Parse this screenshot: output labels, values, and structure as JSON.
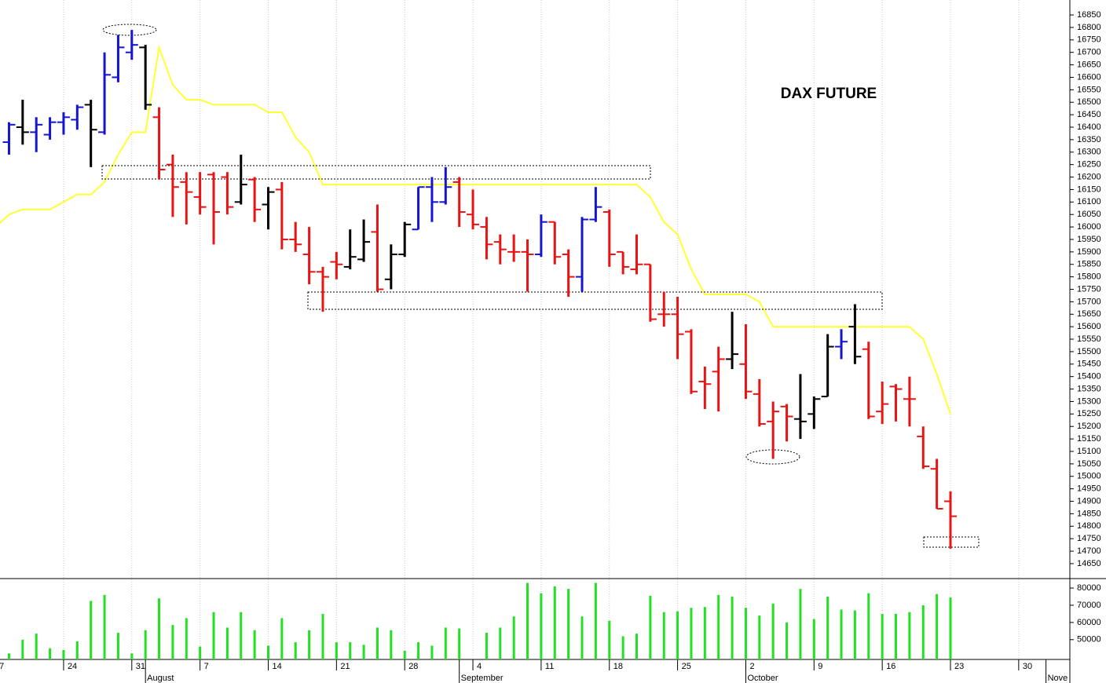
{
  "chart_data": [
    {
      "type": "ohlc",
      "title": "DAX FUTURE",
      "categories": [
        "7",
        null,
        null,
        null,
        null,
        "24",
        null,
        null,
        null,
        null,
        "31",
        null,
        null,
        null,
        null,
        "7",
        null,
        null,
        null,
        null,
        "14",
        null,
        null,
        null,
        null,
        "21",
        null,
        null,
        null,
        null,
        "28",
        null,
        null,
        null,
        null,
        "4",
        null,
        null,
        null,
        null,
        "11",
        null,
        null,
        null,
        null,
        "18",
        null,
        null,
        null,
        null,
        "25",
        null,
        null,
        null,
        null,
        "2",
        null,
        null,
        null,
        null,
        "9",
        null,
        null,
        null,
        null,
        "16",
        null,
        null,
        null,
        null,
        "23",
        null,
        null,
        null,
        null,
        "30",
        null,
        null
      ],
      "month_labels": [
        {
          "value": 11,
          "label": "August"
        },
        {
          "value": 34,
          "label": "September"
        },
        {
          "value": 55,
          "label": "October"
        },
        {
          "value": 77,
          "label": "Nove"
        }
      ],
      "open": [
        null,
        16340,
        16400,
        16380,
        16370,
        16420,
        16430,
        16490,
        16380,
        16600,
        16700,
        16720,
        16440,
        16250,
        16180,
        16120,
        16210,
        16200,
        16100,
        16190,
        16090,
        16150,
        15950,
        15890,
        15820,
        15860,
        15840,
        15870,
        15980,
        15790,
        15890,
        15990,
        16160,
        16100,
        16180,
        16050,
        16000,
        15940,
        15900,
        15900,
        15890,
        16020,
        15890,
        15800,
        16030,
        16060,
        15900,
        15830,
        15850,
        15650,
        15650,
        15580,
        15380,
        15420,
        15470,
        15450,
        15330,
        15220,
        15280,
        15230,
        15250,
        15320,
        15520,
        15600,
        15510,
        15260,
        15360,
        15310,
        15160,
        15030,
        14900,
        null,
        null,
        null,
        null,
        null,
        null,
        null
      ],
      "high": [
        null,
        16420,
        16510,
        16440,
        16440,
        16460,
        16490,
        16510,
        16700,
        16770,
        16790,
        16730,
        16480,
        16290,
        16220,
        16220,
        16220,
        16220,
        16290,
        16200,
        16160,
        16180,
        16020,
        16000,
        15840,
        15900,
        15990,
        16030,
        16090,
        15930,
        16020,
        16160,
        16200,
        16240,
        16200,
        16150,
        16040,
        15970,
        15970,
        15950,
        16050,
        16020,
        15910,
        16040,
        16160,
        16070,
        15900,
        15970,
        15850,
        15740,
        15720,
        15590,
        15440,
        15520,
        15660,
        15610,
        15390,
        15300,
        15290,
        15410,
        15320,
        15570,
        15590,
        15690,
        15540,
        15380,
        15370,
        15400,
        15200,
        15070,
        14940,
        null,
        null,
        null,
        null,
        null,
        null,
        null
      ],
      "low": [
        null,
        16290,
        16330,
        16300,
        16350,
        16370,
        16390,
        16240,
        16370,
        16580,
        16670,
        16470,
        16190,
        16040,
        16010,
        16050,
        15930,
        16050,
        16090,
        16020,
        15990,
        15910,
        15900,
        15770,
        15660,
        15790,
        15830,
        15860,
        15740,
        15750,
        15880,
        15990,
        16020,
        16090,
        16000,
        15990,
        15870,
        15850,
        15860,
        15740,
        15880,
        15850,
        15720,
        15740,
        16020,
        15840,
        15810,
        15810,
        15620,
        15600,
        15470,
        15330,
        15270,
        15260,
        15430,
        15310,
        15200,
        15070,
        15140,
        15150,
        15190,
        15320,
        15470,
        15450,
        15230,
        15210,
        15220,
        15200,
        15030,
        14870,
        14710,
        null,
        null,
        null,
        null,
        null,
        null,
        null
      ],
      "close": [
        null,
        16410,
        16380,
        16410,
        16420,
        16440,
        16480,
        16390,
        16610,
        16720,
        16730,
        16490,
        16230,
        16160,
        16140,
        16080,
        16060,
        16080,
        16170,
        16070,
        16140,
        15950,
        15930,
        15820,
        15800,
        15850,
        15880,
        15940,
        15750,
        15890,
        16010,
        16160,
        16100,
        16160,
        16060,
        16010,
        15930,
        15910,
        15900,
        15890,
        16020,
        15880,
        15800,
        16030,
        16080,
        15890,
        15840,
        15850,
        15630,
        15650,
        15570,
        15340,
        15370,
        15470,
        15490,
        15340,
        15210,
        15260,
        15240,
        15220,
        15310,
        15520,
        15540,
        15480,
        15240,
        15290,
        15350,
        15310,
        15040,
        14870,
        14840,
        null,
        null,
        null,
        null,
        null,
        null,
        null
      ],
      "bar_colors": [
        null,
        "#1414d2",
        "#000000",
        "#1414d2",
        "#1414d2",
        "#1414d2",
        "#1414d2",
        "#000000",
        "#1414d2",
        "#1414d2",
        "#1414d2",
        "#000000",
        "#e81414",
        "#e81414",
        "#e81414",
        "#e81414",
        "#e81414",
        "#e81414",
        "#000000",
        "#e81414",
        "#000000",
        "#e81414",
        "#e81414",
        "#e81414",
        "#e81414",
        "#e81414",
        "#000000",
        "#000000",
        "#e81414",
        "#000000",
        "#000000",
        "#1414d2",
        "#1414d2",
        "#1414d2",
        "#e81414",
        "#e81414",
        "#e81414",
        "#e81414",
        "#e81414",
        "#e81414",
        "#1414d2",
        "#e81414",
        "#e81414",
        "#1414d2",
        "#1414d2",
        "#e81414",
        "#e81414",
        "#e81414",
        "#e81414",
        "#e81414",
        "#e81414",
        "#e81414",
        "#e81414",
        "#e81414",
        "#000000",
        "#e81414",
        "#e81414",
        "#e81414",
        "#e81414",
        "#000000",
        "#000000",
        "#000000",
        "#1414d2",
        "#000000",
        "#e81414",
        "#e81414",
        "#e81414",
        "#e81414",
        "#e81414",
        "#e81414",
        "#e81414",
        null,
        null,
        null,
        null,
        null,
        null,
        null
      ],
      "trail": {
        "color": "#ffff33",
        "values": [
          16000,
          16050,
          16070,
          16070,
          16070,
          16100,
          16130,
          16130,
          16180,
          16290,
          16380,
          16380,
          16720,
          16570,
          16510,
          16510,
          16490,
          16490,
          16490,
          16490,
          16460,
          16460,
          16360,
          16300,
          16170,
          16170,
          16170,
          16170,
          16170,
          16170,
          16170,
          16170,
          16170,
          16170,
          16170,
          16170,
          16170,
          16170,
          16170,
          16170,
          16170,
          16170,
          16170,
          16170,
          16170,
          16170,
          16170,
          16170,
          16120,
          16020,
          15970,
          15830,
          15730,
          15730,
          15730,
          15730,
          15700,
          15600,
          15600,
          15600,
          15600,
          15600,
          15600,
          15600,
          15600,
          15600,
          15600,
          15600,
          15550,
          15410,
          15250,
          null,
          null,
          null,
          null,
          null,
          null,
          null
        ]
      },
      "ylim": [
        14590,
        16910
      ],
      "yticks": [
        14650,
        14700,
        14750,
        14800,
        14850,
        14900,
        14950,
        15000,
        15050,
        15100,
        15150,
        15200,
        15250,
        15300,
        15350,
        15400,
        15450,
        15500,
        15550,
        15600,
        15650,
        15700,
        15750,
        15800,
        15850,
        15900,
        15950,
        16000,
        16050,
        16100,
        16150,
        16200,
        16250,
        16300,
        16350,
        16400,
        16450,
        16500,
        16550,
        16600,
        16650,
        16700,
        16750,
        16800,
        16850
      ],
      "grid": true
    },
    {
      "type": "bar",
      "color": "#22e022",
      "values": [
        null,
        42000,
        50000,
        53500,
        45000,
        44000,
        49000,
        72500,
        76000,
        54000,
        42000,
        55500,
        74000,
        58500,
        62500,
        46000,
        66000,
        57000,
        66000,
        55500,
        46500,
        62500,
        48500,
        55500,
        65000,
        48500,
        48500,
        47000,
        57000,
        55500,
        43500,
        48500,
        46500,
        57000,
        56500,
        null,
        54000,
        57000,
        63500,
        83000,
        77000,
        81000,
        79500,
        63500,
        83000,
        61000,
        52000,
        53500,
        75500,
        66000,
        66500,
        68500,
        69000,
        76000,
        75000,
        68500,
        64000,
        71000,
        60000,
        79500,
        62000,
        75000,
        67500,
        67000,
        77000,
        65000,
        65000,
        66000,
        70000,
        76500,
        74500,
        null,
        null,
        null,
        null,
        null,
        null,
        null
      ],
      "ylim": [
        38500,
        85500
      ],
      "yticks": [
        50000,
        60000,
        70000,
        80000
      ],
      "grid": true
    }
  ]
}
